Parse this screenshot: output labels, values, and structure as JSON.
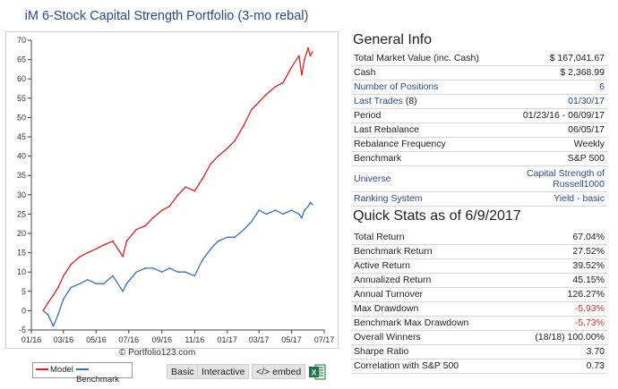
{
  "portfolio_title": "iM 6-Stock Capital Strength Portfolio (3-mo rebal)",
  "copyright": "© Portfolio123.com",
  "buttons": {
    "basic": "Basic",
    "interactive": "Interactive",
    "embed": "</> embed"
  },
  "colors": {
    "model": "#e02020",
    "benchmark": "#3a6fc4",
    "negative": "#d03030",
    "link": "#2a4a9c"
  },
  "chart_data": {
    "type": "line",
    "xlabel": "",
    "ylabel": "",
    "xlim": [
      "2016-01",
      "2017-07"
    ],
    "ylim": [
      -5,
      70
    ],
    "x_ticks": [
      "01/16",
      "03/16",
      "05/16",
      "07/16",
      "09/16",
      "11/16",
      "01/17",
      "03/17",
      "05/17",
      "07/17"
    ],
    "y_ticks": [
      -5,
      0,
      5,
      10,
      15,
      20,
      25,
      30,
      35,
      40,
      45,
      50,
      55,
      60,
      65,
      70
    ],
    "legend": [
      "Model",
      "Benchmark"
    ],
    "legend_position": "bottom-left",
    "grid": false,
    "series": [
      {
        "name": "Model",
        "color": "#e02020",
        "points": [
          [
            "2016-01-23",
            0
          ],
          [
            "2016-02-01",
            2
          ],
          [
            "2016-02-11",
            4
          ],
          [
            "2016-02-20",
            6
          ],
          [
            "2016-03-01",
            9
          ],
          [
            "2016-03-15",
            12
          ],
          [
            "2016-04-01",
            14
          ],
          [
            "2016-04-15",
            15
          ],
          [
            "2016-05-01",
            16
          ],
          [
            "2016-05-15",
            17
          ],
          [
            "2016-06-01",
            18
          ],
          [
            "2016-06-20",
            14
          ],
          [
            "2016-06-27",
            18
          ],
          [
            "2016-07-15",
            21
          ],
          [
            "2016-08-01",
            22
          ],
          [
            "2016-08-15",
            24
          ],
          [
            "2016-09-01",
            26
          ],
          [
            "2016-09-15",
            27
          ],
          [
            "2016-10-01",
            30
          ],
          [
            "2016-10-15",
            32
          ],
          [
            "2016-11-01",
            31
          ],
          [
            "2016-11-15",
            34
          ],
          [
            "2016-12-01",
            38
          ],
          [
            "2016-12-15",
            40
          ],
          [
            "2017-01-01",
            42
          ],
          [
            "2017-01-15",
            44
          ],
          [
            "2017-02-01",
            48
          ],
          [
            "2017-02-15",
            52
          ],
          [
            "2017-03-01",
            54
          ],
          [
            "2017-03-15",
            56
          ],
          [
            "2017-04-01",
            58
          ],
          [
            "2017-04-15",
            59
          ],
          [
            "2017-05-01",
            63
          ],
          [
            "2017-05-15",
            66
          ],
          [
            "2017-05-20",
            61
          ],
          [
            "2017-05-25",
            65
          ],
          [
            "2017-06-01",
            68
          ],
          [
            "2017-06-05",
            66
          ],
          [
            "2017-06-09",
            67
          ]
        ]
      },
      {
        "name": "Benchmark",
        "color": "#3a6fc4",
        "points": [
          [
            "2016-01-23",
            0
          ],
          [
            "2016-02-01",
            -1
          ],
          [
            "2016-02-11",
            -4
          ],
          [
            "2016-02-20",
            -1
          ],
          [
            "2016-03-01",
            3
          ],
          [
            "2016-03-15",
            6
          ],
          [
            "2016-04-01",
            7
          ],
          [
            "2016-04-15",
            8
          ],
          [
            "2016-05-01",
            7
          ],
          [
            "2016-05-15",
            7
          ],
          [
            "2016-06-01",
            9
          ],
          [
            "2016-06-20",
            5
          ],
          [
            "2016-06-27",
            7
          ],
          [
            "2016-07-15",
            10
          ],
          [
            "2016-08-01",
            11
          ],
          [
            "2016-08-15",
            11
          ],
          [
            "2016-09-01",
            10
          ],
          [
            "2016-09-15",
            11
          ],
          [
            "2016-10-01",
            10
          ],
          [
            "2016-10-15",
            10
          ],
          [
            "2016-11-01",
            9
          ],
          [
            "2016-11-15",
            13
          ],
          [
            "2016-12-01",
            16
          ],
          [
            "2016-12-15",
            18
          ],
          [
            "2017-01-01",
            19
          ],
          [
            "2017-01-15",
            19
          ],
          [
            "2017-02-01",
            21
          ],
          [
            "2017-02-15",
            23
          ],
          [
            "2017-03-01",
            26
          ],
          [
            "2017-03-15",
            25
          ],
          [
            "2017-04-01",
            26
          ],
          [
            "2017-04-15",
            25
          ],
          [
            "2017-05-01",
            26
          ],
          [
            "2017-05-15",
            25
          ],
          [
            "2017-05-20",
            24
          ],
          [
            "2017-05-25",
            26
          ],
          [
            "2017-06-01",
            27
          ],
          [
            "2017-06-05",
            28
          ],
          [
            "2017-06-09",
            27.5
          ]
        ]
      }
    ]
  },
  "general_info": {
    "title": "General Info",
    "rows": [
      {
        "label": "Total Market Value (inc. Cash)",
        "value": "$ 167,041.67",
        "link": false
      },
      {
        "label": "Cash",
        "value": "$ 2,368.99",
        "link": false
      },
      {
        "label": "Number of Positions",
        "value": "6",
        "link": true
      },
      {
        "label": "Last Trades (8)",
        "value": "01/30/17",
        "link": true
      },
      {
        "label": "Period",
        "value": "01/23/16 - 06/09/17",
        "link": false
      },
      {
        "label": "Last Rebalance",
        "value": "06/05/17",
        "link": false
      },
      {
        "label": "Rebalance Frequency",
        "value": "Weekly",
        "link": false
      },
      {
        "label": "Benchmark",
        "value": "S&P 500",
        "link": false
      },
      {
        "label": "Universe",
        "value": "Capital Strength of Russell1000",
        "link": true,
        "tall": true
      },
      {
        "label": "Ranking System",
        "value": "Yield - basic",
        "link": true
      }
    ]
  },
  "quick_stats": {
    "title": "Quick Stats as of 6/9/2017",
    "rows": [
      {
        "label": "Total Return",
        "value": "67.04%"
      },
      {
        "label": "Benchmark Return",
        "value": "27.52%"
      },
      {
        "label": "Active Return",
        "value": "39.52%"
      },
      {
        "label": "Annualized Return",
        "value": "45.15%"
      },
      {
        "label": "Annual Turnover",
        "value": "126.27%"
      },
      {
        "label": "Max Drawdown",
        "value": "-5.93%",
        "negative": true
      },
      {
        "label": "Benchmark Max Drawdown",
        "value": "-5.73%",
        "negative": true
      },
      {
        "label": "Overall Winners",
        "value": "(18/18) 100.00%"
      },
      {
        "label": "Sharpe Ratio",
        "value": "3.70"
      },
      {
        "label": "Correlation with S&P 500",
        "value": "0.73"
      }
    ]
  }
}
